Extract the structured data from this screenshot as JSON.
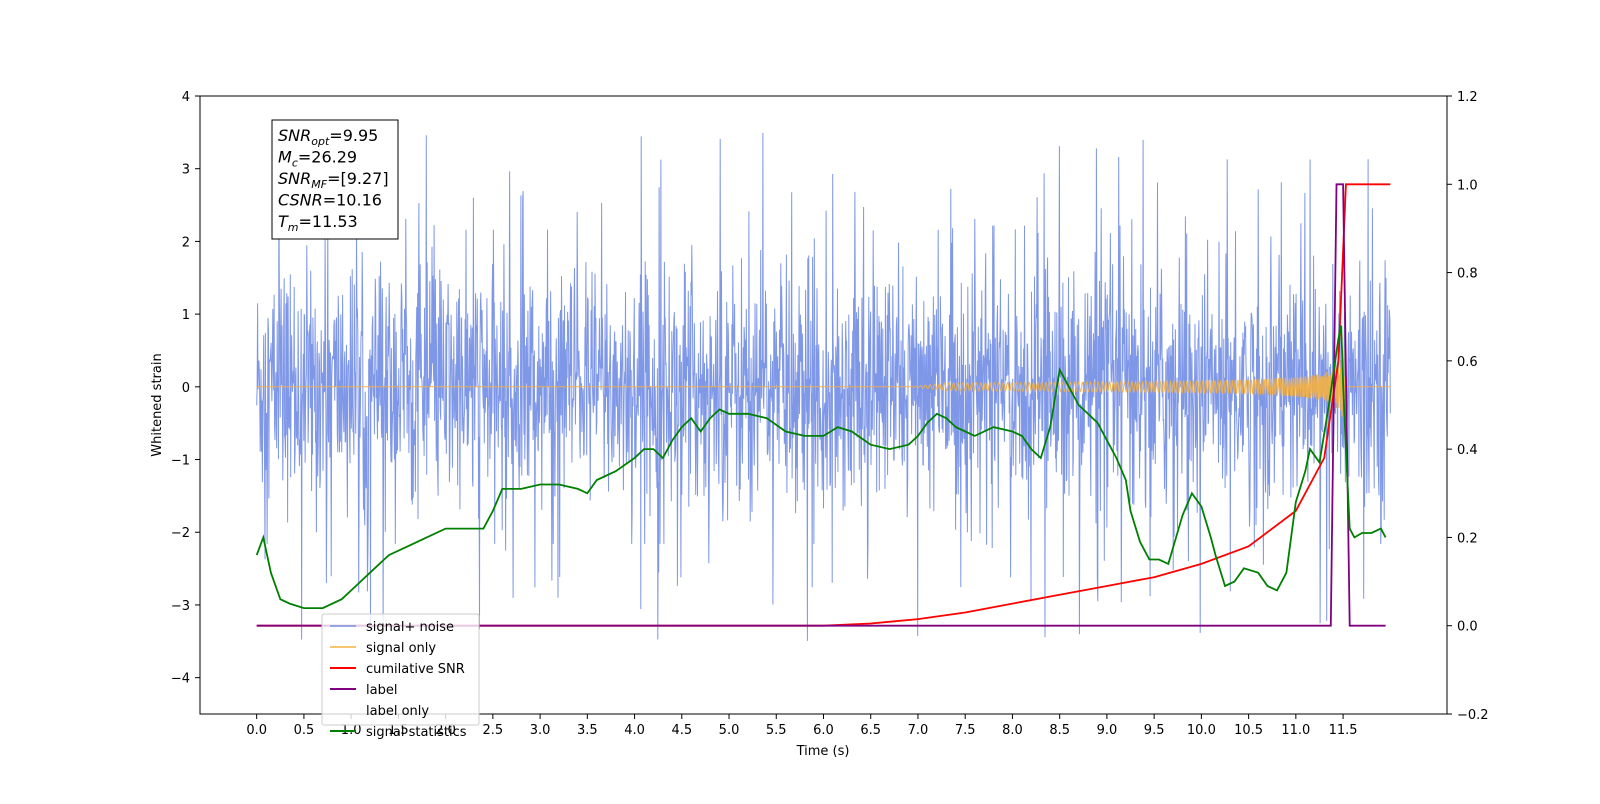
{
  "chart_data": {
    "type": "line",
    "xlabel": "Time (s)",
    "ylabel": "Whitened strain",
    "xlim": [
      -0.6,
      12.6
    ],
    "ylim": [
      -4.5,
      4.0
    ],
    "ylim_right": [
      -0.2,
      1.2
    ],
    "x_ticks": [
      "0.0",
      "0.5",
      "1.0",
      "1.5",
      "2.0",
      "2.5",
      "3.0",
      "3.5",
      "4.0",
      "4.5",
      "5.0",
      "5.5",
      "6.0",
      "6.5",
      "7.0",
      "7.5",
      "8.0",
      "8.5",
      "9.0",
      "9.5",
      "10.0",
      "10.5",
      "11.0",
      "11.5"
    ],
    "y_ticks": [
      "4",
      "3",
      "2",
      "1",
      "0",
      "−1",
      "−2",
      "−3",
      "−4"
    ],
    "y_ticks_right": [
      "1.2",
      "1.0",
      "0.8",
      "0.6",
      "0.4",
      "0.2",
      "0.0",
      "−0.2"
    ],
    "legend_position": "lower left",
    "annotation": {
      "lines": [
        {
          "base": "SNR",
          "sub": "opt",
          "rest": "=9.95"
        },
        {
          "base": "M",
          "sub": "c",
          "rest": "=26.29"
        },
        {
          "base": "SNR",
          "sub": "MF",
          "rest": "=[9.27]"
        },
        {
          "base": "CSNR",
          "sub": "",
          "rest": "=10.16"
        },
        {
          "base": "T",
          "sub": "m",
          "rest": "=11.53"
        }
      ]
    },
    "series": [
      {
        "name": "signal+ noise",
        "color": "#7891e6",
        "axis": "left",
        "kind": "noise",
        "x_range": [
          0.0,
          12.0
        ],
        "amplitude_typical": 1.5,
        "amplitude_peak": 3.6
      },
      {
        "name": "signal only",
        "color": "#f5b041",
        "axis": "left",
        "kind": "chirp",
        "merger_time": 11.53,
        "peak_amplitude": 0.6
      },
      {
        "name": "cumilative SNR",
        "color": "#ff0000",
        "axis": "right",
        "x": [
          0.0,
          6.0,
          6.5,
          7.0,
          7.5,
          8.0,
          8.5,
          9.0,
          9.5,
          10.0,
          10.5,
          11.0,
          11.3,
          11.45,
          11.52,
          11.53,
          12.0
        ],
        "y": [
          0.0,
          0.0,
          0.005,
          0.015,
          0.03,
          0.05,
          0.07,
          0.09,
          0.11,
          0.14,
          0.18,
          0.26,
          0.38,
          0.6,
          0.95,
          1.0,
          1.0
        ]
      },
      {
        "name": "label",
        "color": "#800080",
        "axis": "right",
        "x": [
          0.0,
          11.37,
          11.43,
          11.5,
          11.57,
          11.57,
          11.95
        ],
        "y": [
          0.0,
          0.0,
          1.0,
          1.0,
          0.0,
          0.0,
          0.0
        ]
      },
      {
        "name": "label only",
        "color": "#bdbdbd",
        "axis": "right",
        "kind": "hidden"
      },
      {
        "name": "signal statistics",
        "color": "#008000",
        "axis": "right",
        "x": [
          0.0,
          0.07,
          0.15,
          0.25,
          0.35,
          0.5,
          0.7,
          0.9,
          1.0,
          1.2,
          1.4,
          1.6,
          1.8,
          2.0,
          2.2,
          2.4,
          2.5,
          2.6,
          2.8,
          3.0,
          3.2,
          3.4,
          3.5,
          3.6,
          3.8,
          4.0,
          4.1,
          4.2,
          4.3,
          4.4,
          4.5,
          4.6,
          4.7,
          4.8,
          4.9,
          5.0,
          5.2,
          5.4,
          5.6,
          5.8,
          6.0,
          6.15,
          6.3,
          6.5,
          6.7,
          6.9,
          7.0,
          7.1,
          7.2,
          7.3,
          7.4,
          7.6,
          7.8,
          8.0,
          8.1,
          8.2,
          8.3,
          8.4,
          8.5,
          8.55,
          8.7,
          8.9,
          9.0,
          9.1,
          9.2,
          9.25,
          9.35,
          9.45,
          9.55,
          9.65,
          9.8,
          9.9,
          10.0,
          10.1,
          10.15,
          10.25,
          10.35,
          10.45,
          10.6,
          10.7,
          10.8,
          10.9,
          11.0,
          11.1,
          11.15,
          11.25,
          11.35,
          11.45,
          11.48,
          11.5,
          11.53,
          11.57,
          11.62,
          11.7,
          11.8,
          11.9,
          11.95
        ],
        "y": [
          0.16,
          0.2,
          0.12,
          0.06,
          0.05,
          0.04,
          0.04,
          0.06,
          0.08,
          0.12,
          0.16,
          0.18,
          0.2,
          0.22,
          0.22,
          0.22,
          0.26,
          0.31,
          0.31,
          0.32,
          0.32,
          0.31,
          0.3,
          0.33,
          0.35,
          0.38,
          0.4,
          0.4,
          0.38,
          0.42,
          0.45,
          0.47,
          0.44,
          0.47,
          0.49,
          0.48,
          0.48,
          0.47,
          0.44,
          0.43,
          0.43,
          0.45,
          0.44,
          0.41,
          0.4,
          0.41,
          0.43,
          0.46,
          0.48,
          0.47,
          0.45,
          0.43,
          0.45,
          0.44,
          0.43,
          0.4,
          0.38,
          0.45,
          0.58,
          0.56,
          0.5,
          0.46,
          0.42,
          0.38,
          0.33,
          0.26,
          0.19,
          0.15,
          0.15,
          0.14,
          0.25,
          0.3,
          0.27,
          0.2,
          0.16,
          0.09,
          0.1,
          0.13,
          0.12,
          0.09,
          0.08,
          0.12,
          0.28,
          0.35,
          0.4,
          0.37,
          0.5,
          0.65,
          0.68,
          0.55,
          0.4,
          0.22,
          0.2,
          0.21,
          0.21,
          0.22,
          0.2
        ]
      }
    ]
  }
}
